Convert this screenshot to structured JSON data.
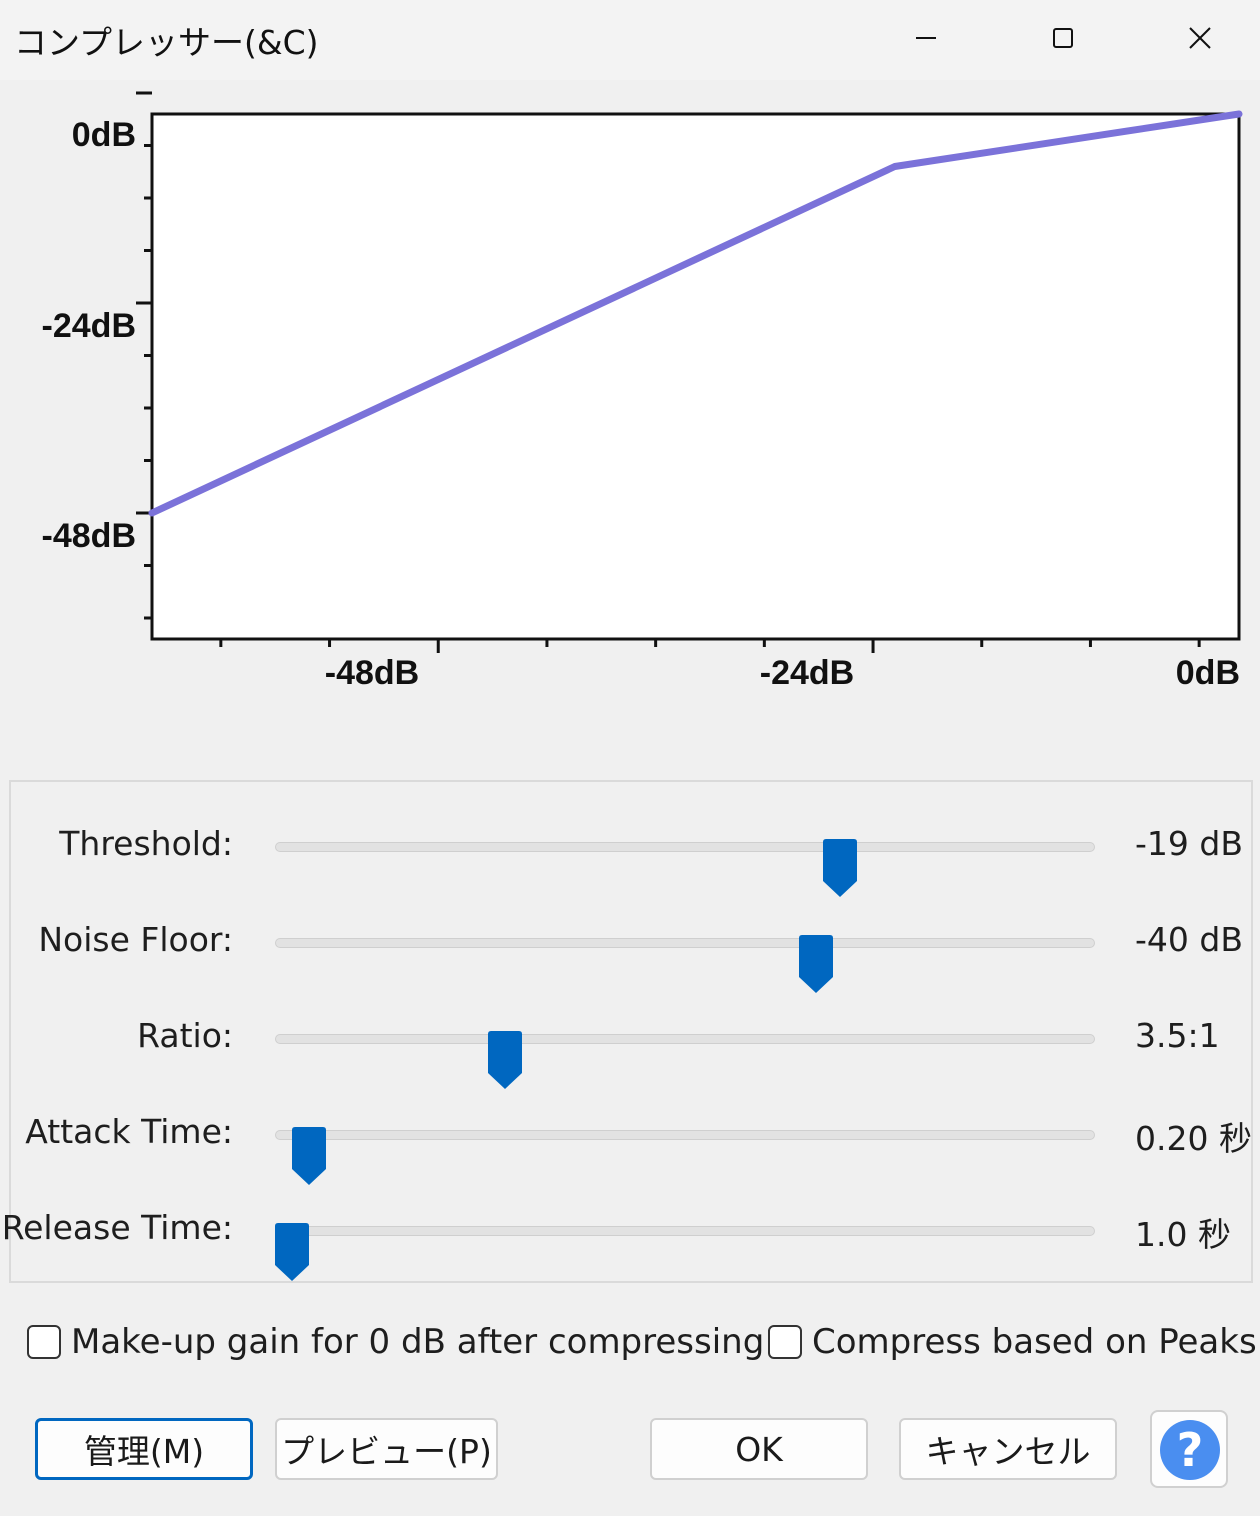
{
  "window": {
    "title": "コンプレッサー(&C)",
    "controls": {
      "minimize_icon": "minimize-icon",
      "maximize_icon": "maximize-icon",
      "close_icon": "close-icon"
    }
  },
  "chart_data": {
    "type": "line",
    "x_ticks": [
      "-48dB",
      "-24dB",
      "0dB"
    ],
    "y_ticks": [
      "0dB",
      "-24dB",
      "-48dB"
    ],
    "xlim": [
      -60,
      0
    ],
    "ylim": [
      -60,
      0
    ],
    "line_color": "#7b72d9",
    "series": [
      {
        "x": [
          -60,
          -19,
          0
        ],
        "y": [
          -45.6,
          -6,
          0
        ]
      }
    ]
  },
  "sliders": [
    {
      "label": "Threshold:",
      "value": "-19 dB",
      "fraction": 0.69
    },
    {
      "label": "Noise Floor:",
      "value": "-40 dB",
      "fraction": 0.66
    },
    {
      "label": "Ratio:",
      "value": "3.5:1",
      "fraction": 0.28
    },
    {
      "label": "Attack Time:",
      "value": "0.20 秒",
      "fraction": 0.04
    },
    {
      "label": "Release Time:",
      "value": "1.0 秒",
      "fraction": 0.02
    }
  ],
  "options": {
    "makeup_gain": {
      "label": "Make-up gain for 0 dB after compressing",
      "checked": false
    },
    "peaks": {
      "label": "Compress based on Peaks",
      "checked": false
    }
  },
  "buttons": {
    "manage": "管理(M)",
    "preview": "プレビュー(P)",
    "ok": "OK",
    "cancel": "キャンセル",
    "help": "?"
  },
  "colors": {
    "accent": "#0067c0",
    "help": "#4a8ef0"
  }
}
